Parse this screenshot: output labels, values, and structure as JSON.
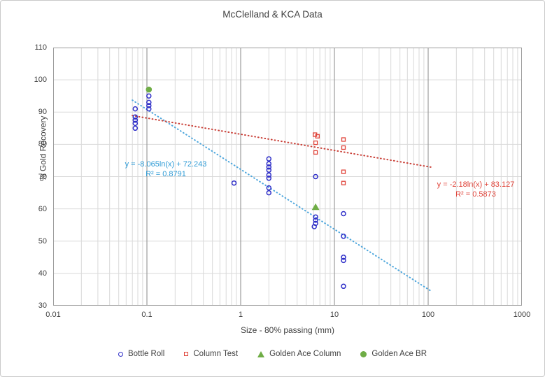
{
  "title": "McClelland & KCA Data",
  "axes": {
    "x": {
      "label": "Size - 80% passing (mm)",
      "scale": "log",
      "min": 0.01,
      "max": 1000,
      "tick_labels": [
        "0.01",
        "0.1",
        "1",
        "10",
        "100",
        "1000"
      ]
    },
    "y": {
      "label": "% Gold Recovery",
      "min": 30,
      "max": 110,
      "tick_step": 10,
      "tick_labels": [
        "110",
        "100",
        "90",
        "80",
        "70",
        "60",
        "50",
        "40",
        "30"
      ]
    }
  },
  "chart_data": {
    "type": "scatter",
    "title": "McClelland & KCA Data",
    "xlabel": "Size - 80% passing (mm)",
    "ylabel": "% Gold Recovery",
    "x_scale": "log",
    "xlim": [
      0.01,
      1000
    ],
    "ylim": [
      30,
      110
    ],
    "grid": "on",
    "legend_position": "bottom",
    "series": [
      {
        "name": "Bottle Roll",
        "marker": "open-circle",
        "color": "#2f2fc8",
        "points": [
          [
            0.075,
            91
          ],
          [
            0.075,
            88.5
          ],
          [
            0.075,
            87.5
          ],
          [
            0.075,
            86.5
          ],
          [
            0.075,
            85
          ],
          [
            0.105,
            95
          ],
          [
            0.105,
            93
          ],
          [
            0.105,
            92
          ],
          [
            0.105,
            91
          ],
          [
            0.85,
            68
          ],
          [
            2,
            75.5
          ],
          [
            2,
            74
          ],
          [
            2,
            73
          ],
          [
            2,
            72
          ],
          [
            2,
            70.5
          ],
          [
            2,
            69.5
          ],
          [
            2,
            66.5
          ],
          [
            2,
            65
          ],
          [
            6.3,
            70
          ],
          [
            6.3,
            57.5
          ],
          [
            6.3,
            56.5
          ],
          [
            6.3,
            55.5
          ],
          [
            6.1,
            54.5
          ],
          [
            12.5,
            58.5
          ],
          [
            12.5,
            51.5
          ],
          [
            12.5,
            45
          ],
          [
            12.5,
            44
          ],
          [
            12.5,
            36
          ]
        ]
      },
      {
        "name": "Column Test",
        "marker": "open-square",
        "color": "#e0443a",
        "points": [
          [
            6.2,
            83
          ],
          [
            6.6,
            82.5
          ],
          [
            6.3,
            80.5
          ],
          [
            6.3,
            77.5
          ],
          [
            12.5,
            81.5
          ],
          [
            12.5,
            79
          ],
          [
            12.5,
            71.5
          ],
          [
            12.5,
            68
          ]
        ]
      },
      {
        "name": "Golden Ace Column",
        "marker": "filled-triangle",
        "color": "#6fad46",
        "points": [
          [
            6.3,
            60.5
          ]
        ]
      },
      {
        "name": "Golden Ace BR",
        "marker": "filled-circle",
        "color": "#6fad46",
        "points": [
          [
            0.105,
            97
          ]
        ]
      }
    ],
    "trendlines": [
      {
        "series": "Bottle Roll",
        "equation": "y = -8.065ln(x) + 72.243",
        "r2": "R² = 0.8791",
        "a": -8.065,
        "b": 72.243,
        "x_start": 0.07,
        "x_end": 110,
        "color": "#4da6dc",
        "style": "dotted"
      },
      {
        "series": "Column Test",
        "equation": "y = -2.18ln(x) + 83.127",
        "r2": "R² = 0.5873",
        "a": -2.18,
        "b": 83.127,
        "x_start": 0.07,
        "x_end": 110,
        "color": "#c94038",
        "style": "dotted"
      }
    ]
  },
  "legend": {
    "items": [
      {
        "label": "Bottle Roll",
        "marker": "open-circle"
      },
      {
        "label": "Column Test",
        "marker": "open-square"
      },
      {
        "label": "Golden Ace Column",
        "marker": "triangle"
      },
      {
        "label": "Golden Ace BR",
        "marker": "filled-circle"
      }
    ]
  },
  "colors": {
    "bottle_roll": "#2f2fc8",
    "column_test": "#e0443a",
    "golden_ace": "#6fad46",
    "trend_blue": "#4da6dc",
    "trend_red": "#c94038",
    "grid_minor": "#d9d9d9",
    "grid_major": "#9c9c9c",
    "text": "#404040"
  }
}
